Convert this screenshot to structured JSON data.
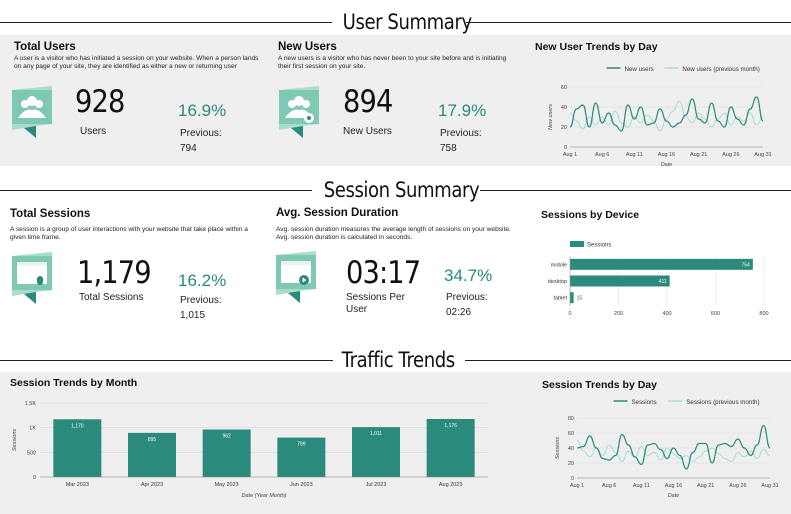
{
  "sections": {
    "user_summary": "User Summary",
    "session_summary": "Session Summary",
    "traffic_trends": "Traffic Trends"
  },
  "colors": {
    "accent": "#2a8a7c",
    "accent_light": "#a8dccb",
    "band": "#efefef"
  },
  "kpis": {
    "total_users": {
      "title": "Total Users",
      "description": "A user is a visitor who has initiated a session on your website. When a person lands on any page of your site, they are identified as either a new or returning user",
      "icon": "users-group-icon",
      "value": "928",
      "label": "Users",
      "change": "16.9%",
      "previous_label": "Previous:",
      "previous_value": "794"
    },
    "new_users": {
      "title": "New Users",
      "description": "A new users is a visitor who has never been to your site before and is initiating their first session on your site.",
      "icon": "new-users-icon",
      "value": "894",
      "label": "New Users",
      "change": "17.9%",
      "previous_label": "Previous:",
      "previous_value": "758"
    },
    "total_sessions": {
      "title": "Total Sessions",
      "description": "A session is a group of user interactions with your website that take place within a given time frame.",
      "icon": "sessions-window-icon",
      "value": "1,179",
      "label": "Total Sessions",
      "change": "16.2%",
      "previous_label": "Previous:",
      "previous_value": "1,015"
    },
    "avg_session_duration": {
      "title": "Avg. Session Duration",
      "description": "Avg. session duration measures the average length of sessions on your website. Avg. session duration is calculated in seconds.",
      "icon": "session-duration-icon",
      "value": "03:17",
      "label": "Sessions Per User",
      "change": "34.7%",
      "previous_label": "Previous:",
      "previous_value": "02:26"
    }
  },
  "chart_data": [
    {
      "id": "new_user_trends",
      "type": "line",
      "title": "New User Trends by Day",
      "xlabel": "Date",
      "ylabel": "New users",
      "ylim": [
        0,
        60
      ],
      "yticks": [
        0,
        20,
        40,
        60
      ],
      "xtick_labels": [
        "Aug 1",
        "Aug 6",
        "Aug 11",
        "Aug 16",
        "Aug 21",
        "Aug 26",
        "Aug 31"
      ],
      "legend_position": "top",
      "x": [
        1,
        2,
        3,
        4,
        5,
        6,
        7,
        8,
        9,
        10,
        11,
        12,
        13,
        14,
        15,
        16,
        17,
        18,
        19,
        20,
        21,
        22,
        23,
        24,
        25,
        26,
        27,
        28,
        29,
        30,
        31
      ],
      "series": [
        {
          "name": "New users",
          "color": "#2a8a7c",
          "width": 1.2,
          "values": [
            20,
            38,
            42,
            20,
            44,
            24,
            34,
            22,
            16,
            42,
            28,
            40,
            22,
            24,
            38,
            26,
            20,
            24,
            32,
            48,
            28,
            24,
            44,
            26,
            20,
            40,
            28,
            22,
            38,
            50,
            26
          ]
        },
        {
          "name": "New users (previous month)",
          "color": "#a8dccb",
          "width": 1,
          "values": [
            34,
            26,
            18,
            30,
            22,
            30,
            22,
            36,
            24,
            20,
            30,
            24,
            32,
            26,
            16,
            28,
            36,
            46,
            30,
            24,
            34,
            28,
            20,
            28,
            34,
            22,
            30,
            26,
            34,
            22,
            30
          ]
        }
      ]
    },
    {
      "id": "sessions_by_device",
      "type": "bar",
      "orientation": "horizontal",
      "title": "Sessions by Device",
      "legend": "Sessions",
      "legend_position": "top-left",
      "categories": [
        "mobile",
        "desktop",
        "tablet"
      ],
      "values": [
        754,
        411,
        15
      ],
      "xlim": [
        0,
        800
      ],
      "xticks": [
        0,
        200,
        400,
        600,
        800
      ]
    },
    {
      "id": "session_trends_month",
      "type": "bar",
      "title": "Session Trends by Month",
      "xlabel": "Date (Year Month)",
      "ylabel": "Sessions",
      "categories": [
        "Mar 2023",
        "Apr 2023",
        "May 2023",
        "Jun 2023",
        "Jul 2023",
        "Aug 2023"
      ],
      "values": [
        1170,
        895,
        962,
        799,
        1011,
        1176
      ],
      "value_labels": [
        "1,170",
        "895",
        "962",
        "799",
        "1,011",
        "1,176"
      ],
      "ylim": [
        0,
        1500
      ],
      "yticks": [
        0,
        500,
        1000,
        1500
      ],
      "ytick_labels": [
        "0",
        "500",
        "1K",
        "1.5K"
      ]
    },
    {
      "id": "session_trends_day",
      "type": "line",
      "title": "Session Trends by Day",
      "xlabel": "Date",
      "ylabel": "Sessions",
      "ylim": [
        0,
        80
      ],
      "yticks": [
        0,
        20,
        40,
        60,
        80
      ],
      "xtick_labels": [
        "Aug 1",
        "Aug 6",
        "Aug 11",
        "Aug 16",
        "Aug 21",
        "Aug 26",
        "Aug 31"
      ],
      "legend_position": "top",
      "x": [
        1,
        2,
        3,
        4,
        5,
        6,
        7,
        8,
        9,
        10,
        11,
        12,
        13,
        14,
        15,
        16,
        17,
        18,
        19,
        20,
        21,
        22,
        23,
        24,
        25,
        26,
        27,
        28,
        29,
        30,
        31
      ],
      "series": [
        {
          "name": "Sessions",
          "color": "#2a8a7c",
          "width": 1.2,
          "values": [
            40,
            42,
            56,
            40,
            26,
            24,
            30,
            58,
            44,
            28,
            18,
            44,
            46,
            38,
            26,
            40,
            30,
            12,
            34,
            46,
            46,
            20,
            44,
            46,
            42,
            52,
            40,
            30,
            44,
            70,
            40
          ]
        },
        {
          "name": "Sessions (previous month)",
          "color": "#a8dccb",
          "width": 1,
          "values": [
            50,
            36,
            28,
            40,
            30,
            44,
            34,
            22,
            36,
            28,
            42,
            30,
            34,
            24,
            40,
            32,
            26,
            30,
            22,
            28,
            36,
            40,
            32,
            26,
            22,
            34,
            28,
            36,
            26,
            38,
            30
          ]
        }
      ]
    }
  ]
}
